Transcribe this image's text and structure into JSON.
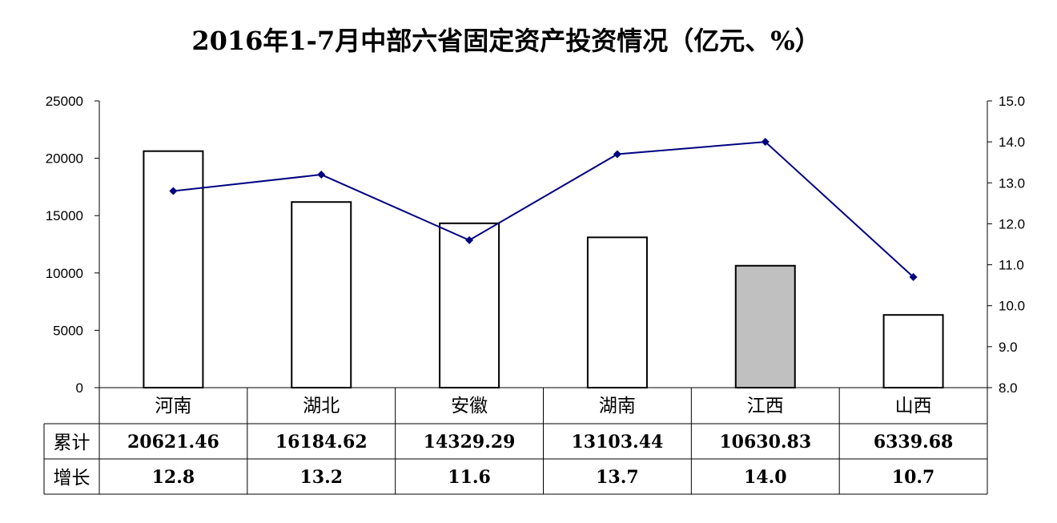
{
  "chart_data": {
    "type": "bar",
    "title": "2016年1-7月中部六省固定资产投资情况（亿元、%）",
    "categories": [
      "河南",
      "湖北",
      "安徽",
      "湖南",
      "江西",
      "山西"
    ],
    "series": [
      {
        "name": "累计",
        "type": "bar",
        "axis": "left",
        "values": [
          20621.46,
          16184.62,
          14329.29,
          13103.44,
          10630.83,
          6339.68
        ],
        "display": [
          "20621.46",
          "16184.62",
          "14329.29",
          "13103.44",
          "10630.83",
          "6339.68"
        ]
      },
      {
        "name": "增长",
        "type": "line",
        "axis": "right",
        "values": [
          12.8,
          13.2,
          11.6,
          13.7,
          14.0,
          10.7
        ],
        "display": [
          "12.8",
          "13.2",
          "11.6",
          "13.7",
          "14.0",
          "10.7"
        ]
      }
    ],
    "highlight_index": 4,
    "y_left": {
      "min": 0,
      "max": 25000,
      "ticks": [
        "0",
        "5000",
        "10000",
        "15000",
        "20000",
        "25000"
      ]
    },
    "y_right": {
      "min": 8.0,
      "max": 15.0,
      "ticks": [
        "8.0",
        "9.0",
        "10.0",
        "11.0",
        "12.0",
        "13.0",
        "14.0",
        "15.0"
      ]
    },
    "colors": {
      "bar_fill": "#ffffff",
      "bar_highlight_fill": "#c0c0c0",
      "bar_stroke": "#000000",
      "line": "#000080",
      "marker": "#000080"
    },
    "grid": false,
    "legend": "data table below chart"
  }
}
